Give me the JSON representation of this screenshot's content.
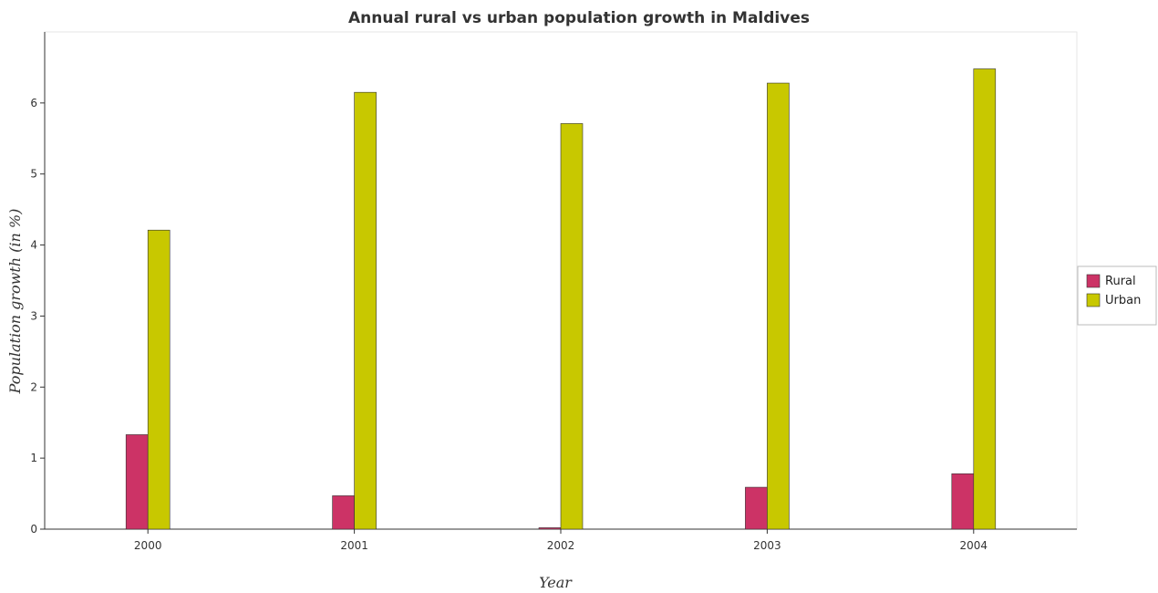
{
  "chart_data": {
    "type": "bar",
    "title": "Annual rural vs urban population growth in Maldives",
    "xlabel": "Year",
    "ylabel": "Population growth (in %)",
    "categories": [
      "2000",
      "2001",
      "2002",
      "2003",
      "2004"
    ],
    "series": [
      {
        "name": "Rural",
        "color": "#cc3366",
        "values": [
          1.33,
          0.47,
          0.02,
          0.59,
          0.78
        ]
      },
      {
        "name": "Urban",
        "color": "#c8c800",
        "values": [
          4.21,
          6.15,
          5.71,
          6.28,
          6.48
        ]
      }
    ],
    "ylim": [
      0,
      7
    ],
    "yticks": [
      "0",
      "1",
      "2",
      "3",
      "4",
      "5",
      "6"
    ],
    "grid": false,
    "legend_position": "right"
  }
}
